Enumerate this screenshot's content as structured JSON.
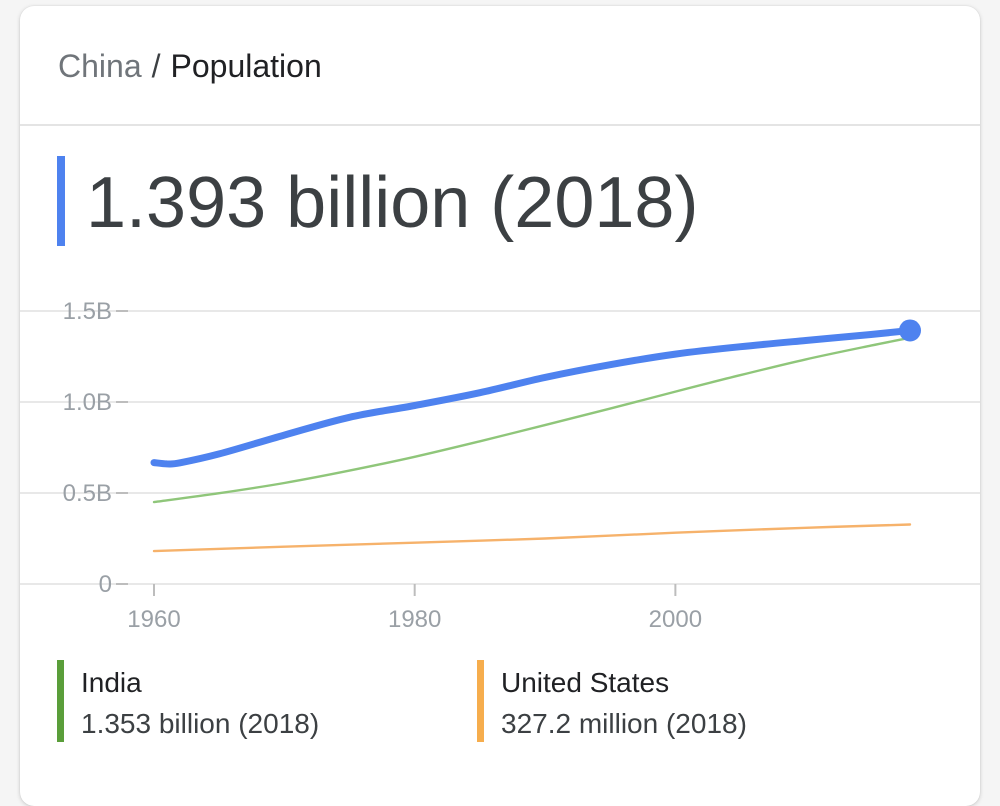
{
  "breadcrumb": {
    "country": "China",
    "separator": "/",
    "topic": "Population"
  },
  "headline": {
    "value": "1.393 billion (2018)",
    "accent_color": "#4e82ef"
  },
  "chart_data": {
    "type": "line",
    "title": "",
    "xlabel": "",
    "ylabel": "",
    "xlim": [
      1960,
      2018
    ],
    "ylim": [
      0,
      1.5
    ],
    "x_ticks": [
      1960,
      1980,
      2000
    ],
    "x_tick_labels": [
      "1960",
      "1980",
      "2000"
    ],
    "y_ticks": [
      0,
      0.5,
      1.0,
      1.5
    ],
    "y_tick_labels": [
      "0",
      "0.5B",
      "1.0B",
      "1.5B"
    ],
    "grid": true,
    "series": [
      {
        "name": "China",
        "color": "#4e82ef",
        "x": [
          1960,
          1961,
          1962,
          1965,
          1970,
          1975,
          1980,
          1985,
          1990,
          1995,
          2000,
          2005,
          2010,
          2015,
          2018
        ],
        "y": [
          0.667,
          0.66,
          0.666,
          0.715,
          0.818,
          0.916,
          0.981,
          1.051,
          1.135,
          1.205,
          1.263,
          1.304,
          1.338,
          1.371,
          1.393
        ],
        "end_marker": true
      },
      {
        "name": "India",
        "color": "#8fc67a",
        "x": [
          1960,
          1965,
          1970,
          1975,
          1980,
          1985,
          1990,
          1995,
          2000,
          2005,
          2010,
          2015,
          2018
        ],
        "y": [
          0.45,
          0.499,
          0.555,
          0.623,
          0.699,
          0.784,
          0.873,
          0.964,
          1.057,
          1.148,
          1.234,
          1.31,
          1.353
        ]
      },
      {
        "name": "United States",
        "color": "#f6b26b",
        "x": [
          1960,
          1970,
          1980,
          1990,
          2000,
          2010,
          2018
        ],
        "y": [
          0.181,
          0.205,
          0.227,
          0.25,
          0.282,
          0.309,
          0.327
        ]
      }
    ]
  },
  "legend": [
    {
      "name": "India",
      "value": "1.353 billion (2018)",
      "color": "#5a9e3a"
    },
    {
      "name": "United States",
      "value": "327.2 million (2018)",
      "color": "#f6ad4d"
    }
  ]
}
